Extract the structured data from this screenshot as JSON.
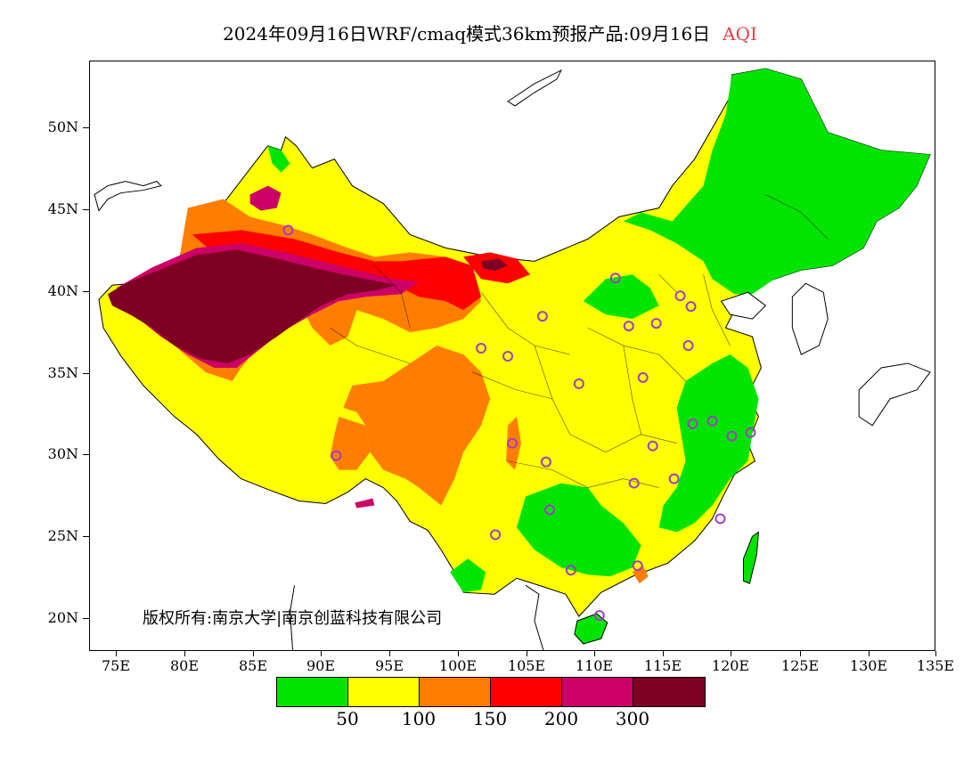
{
  "title": {
    "text": "2024年09月16日WRF/cmaq模式36km预报产品:09月16日",
    "variable": "AQI",
    "variable_color": "#e8404a"
  },
  "copyright": "版权所有:南京大学|南京创蓝科技有限公司",
  "axes": {
    "lat_labels": [
      "50N",
      "45N",
      "40N",
      "35N",
      "30N",
      "25N",
      "20N"
    ],
    "lon_labels": [
      "75E",
      "80E",
      "85E",
      "90E",
      "95E",
      "100E",
      "105E",
      "110E",
      "115E",
      "120E",
      "125E",
      "130E",
      "135E"
    ]
  },
  "legend": {
    "colors": [
      "#00e400",
      "#ffff00",
      "#ff7e00",
      "#ff0000",
      "#cc0066",
      "#7e0023"
    ],
    "labels": [
      "50",
      "100",
      "150",
      "200",
      "300"
    ]
  },
  "colors": {
    "good": "#00e400",
    "moderate": "#ffff00",
    "unhealthy_sensitive": "#ff7e00",
    "unhealthy": "#ff0000",
    "very_unhealthy": "#cc0066",
    "hazardous": "#7e0023",
    "station_marker": "#a040c0"
  }
}
